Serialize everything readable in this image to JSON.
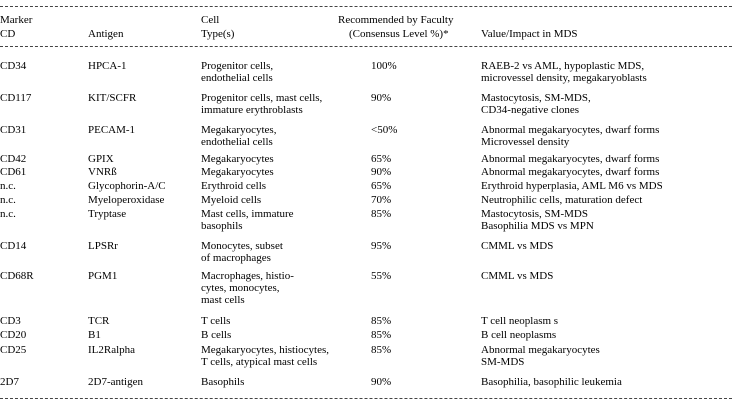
{
  "header": {
    "marker": "Marker",
    "cd": "CD",
    "antigen": "Antigen",
    "cell": "Cell",
    "type": "Type(s)",
    "recommended": "Recommended by Faculty",
    "consensus": "(Consensus Level %)*",
    "value_impact": "Value/Impact in MDS"
  },
  "rows": [
    {
      "cd": "CD34",
      "antigen": "HPCA-1",
      "cell": [
        "Progenitor cells,",
        "endothelial cells"
      ],
      "level": "100%",
      "impact": [
        "RAEB-2 vs AML, hypoplastic MDS,",
        "microvessel density, megakaryoblasts"
      ]
    },
    {
      "cd": "CD117",
      "antigen": "KIT/SCFR",
      "cell": [
        "Progenitor cells, mast cells,",
        "immature erythroblasts"
      ],
      "level": "90%",
      "impact": [
        "Mastocytosis, SM-MDS,",
        "CD34-negative clones"
      ]
    },
    {
      "cd": "CD31",
      "antigen": "PECAM-1",
      "cell": [
        "Megakaryocytes,",
        "endothelial cells"
      ],
      "level": "<50%",
      "impact": [
        "Abnormal megakaryocytes, dwarf forms",
        "Microvessel density"
      ]
    },
    {
      "cd": "CD42",
      "antigen": "GPIX",
      "cell": [
        "Megakaryocytes"
      ],
      "level": "65%",
      "impact": [
        "Abnormal megakaryocytes, dwarf forms"
      ]
    },
    {
      "cd": "CD61",
      "antigen": "VNRß",
      "cell": [
        "Megakaryocytes"
      ],
      "level": "90%",
      "impact": [
        "Abnormal megakaryocytes, dwarf forms"
      ]
    },
    {
      "cd": "n.c.",
      "antigen": "Glycophorin-A/C",
      "cell": [
        "Erythroid cells"
      ],
      "level": "65%",
      "impact": [
        "Erythroid hyperplasia, AML M6 vs MDS"
      ]
    },
    {
      "cd": "n.c.",
      "antigen": "Myeloperoxidase",
      "cell": [
        "Myeloid cells"
      ],
      "level": "70%",
      "impact": [
        "Neutrophilic cells, maturation defect"
      ]
    },
    {
      "cd": "n.c.",
      "antigen": "Tryptase",
      "cell": [
        "Mast cells, immature",
        "basophils"
      ],
      "level": "85%",
      "impact": [
        "Mastocytosis, SM-MDS",
        "Basophilia MDS vs MPN"
      ]
    },
    {
      "cd": "CD14",
      "antigen": "LPSRr",
      "cell": [
        "Monocytes, subset",
        "of macrophages"
      ],
      "level": "95%",
      "impact": [
        "CMML vs MDS"
      ]
    },
    {
      "cd": "CD68R",
      "antigen": "PGM1",
      "cell": [
        "Macrophages, histio-",
        "cytes, monocytes,",
        "mast cells"
      ],
      "level": "55%",
      "impact": [
        "CMML vs MDS"
      ]
    },
    {
      "cd": "CD3",
      "antigen": "TCR",
      "cell": [
        "T cells"
      ],
      "level": "85%",
      "impact": [
        "T cell neoplasm s"
      ]
    },
    {
      "cd": "CD20",
      "antigen": "B1",
      "cell": [
        "B cells"
      ],
      "level": "85%",
      "impact": [
        "B cell neoplasms"
      ]
    },
    {
      "cd": "CD25",
      "antigen": "IL2Ralpha",
      "cell": [
        "Megakaryocytes, histiocytes,",
        "T cells, atypical mast cells"
      ],
      "level": "85%",
      "impact": [
        "Abnormal megakaryocytes",
        "SM-MDS"
      ]
    },
    {
      "cd": "2D7",
      "antigen": "2D7-antigen",
      "cell": [
        "Basophils"
      ],
      "level": "90%",
      "impact": [
        "Basophilia, basophilic leukemia"
      ]
    }
  ]
}
